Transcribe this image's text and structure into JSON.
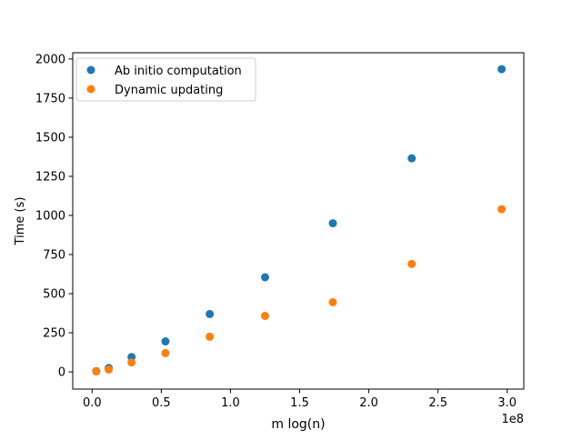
{
  "chart_data": {
    "type": "scatter",
    "title": "",
    "xlabel": "m log(n)",
    "ylabel": "Time (s)",
    "x_offset_label": "1e8",
    "x_scale": 100000000,
    "xlim": [
      -0.14,
      3.12
    ],
    "ylim": [
      -110,
      2040
    ],
    "x_ticks": [
      0.0,
      0.5,
      1.0,
      1.5,
      2.0,
      2.5,
      3.0
    ],
    "x_tick_labels": [
      "0.0",
      "0.5",
      "1.0",
      "1.5",
      "2.0",
      "2.5",
      "3.0"
    ],
    "y_ticks": [
      0,
      250,
      500,
      750,
      1000,
      1250,
      1500,
      1750,
      2000
    ],
    "y_tick_labels": [
      "0",
      "250",
      "500",
      "750",
      "1000",
      "1250",
      "1500",
      "1750",
      "2000"
    ],
    "grid": false,
    "legend_position": "top-left",
    "series": [
      {
        "name": "Ab initio computation",
        "color": "#1f77b4",
        "x": [
          0.03,
          0.12,
          0.285,
          0.53,
          0.85,
          1.25,
          1.74,
          2.31,
          2.96
        ],
        "y": [
          5,
          25,
          95,
          195,
          370,
          605,
          950,
          1365,
          1935
        ]
      },
      {
        "name": "Dynamic updating",
        "color": "#ff7f0e",
        "x": [
          0.03,
          0.12,
          0.285,
          0.53,
          0.85,
          1.25,
          1.74,
          2.31,
          2.96
        ],
        "y": [
          3,
          15,
          60,
          120,
          225,
          358,
          445,
          690,
          1040
        ]
      }
    ]
  }
}
